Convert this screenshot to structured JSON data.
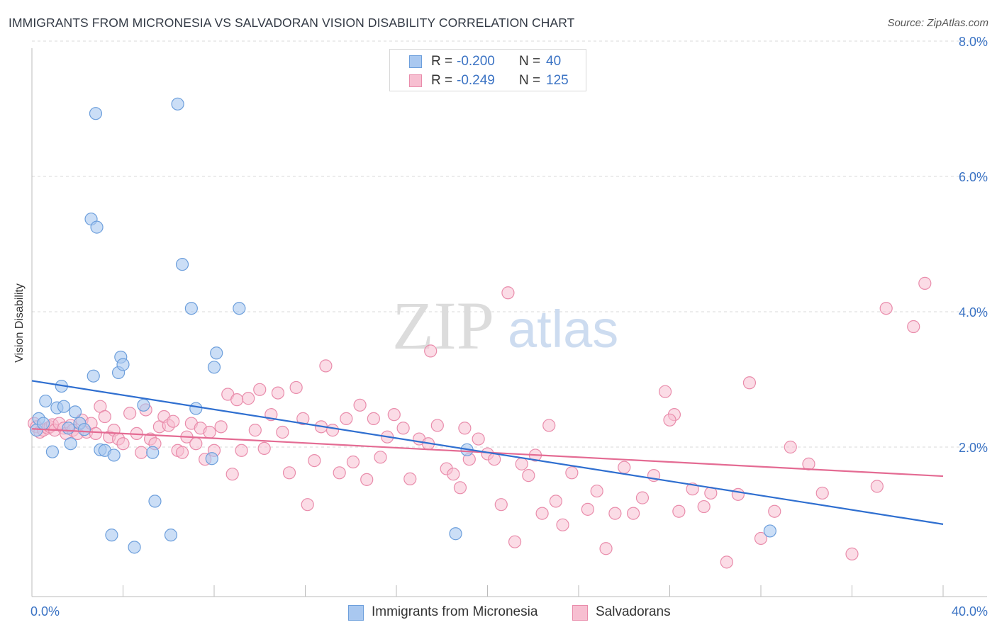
{
  "title": "IMMIGRANTS FROM MICRONESIA VS SALVADORAN VISION DISABILITY CORRELATION CHART",
  "source": "Source: ZipAtlas.com",
  "watermark": {
    "zip": "ZIP",
    "atlas": "atlas"
  },
  "legend_top": {
    "rows": [
      {
        "r_label": "R =",
        "r_value": "-0.200",
        "n_label": "N =",
        "n_value": "40"
      },
      {
        "r_label": "R =",
        "r_value": "-0.249",
        "n_label": "N =",
        "n_value": "125"
      }
    ]
  },
  "legend_bottom": [
    "Immigrants from Micronesia",
    "Salvadorans"
  ],
  "colors": {
    "blue_fill": "#a9c8f0",
    "blue_stroke": "#6d9fdc",
    "blue_line": "#2f6fd0",
    "pink_fill": "#f7bfd1",
    "pink_stroke": "#e98cab",
    "pink_line": "#e46b93",
    "tick_text": "#3b73c4",
    "grid": "#d8d8d8"
  },
  "chart_data": {
    "type": "scatter",
    "title": "IMMIGRANTS FROM MICRONESIA VS SALVADORAN VISION DISABILITY CORRELATION CHART",
    "xlabel": "",
    "ylabel": "Vision Disability",
    "xlim": [
      0,
      40
    ],
    "ylim": [
      0,
      8.4
    ],
    "x_tick_labels": [
      "0.0%",
      "40.0%"
    ],
    "y_ticks": [
      2,
      4,
      6,
      8
    ],
    "y_tick_labels": [
      "2.0%",
      "4.0%",
      "6.0%",
      "8.0%"
    ],
    "grid": "horizontal dashed",
    "legend_position": "top-center",
    "series": [
      {
        "name": "Immigrants from Micronesia",
        "color": "#a9c8f0",
        "trend": {
          "x": [
            0,
            40
          ],
          "y": [
            2.98,
            0.86
          ]
        },
        "points": [
          [
            0.2,
            2.25
          ],
          [
            0.3,
            2.42
          ],
          [
            0.5,
            2.35
          ],
          [
            0.6,
            2.68
          ],
          [
            0.9,
            1.93
          ],
          [
            1.1,
            2.58
          ],
          [
            1.3,
            2.9
          ],
          [
            1.4,
            2.6
          ],
          [
            1.6,
            2.28
          ],
          [
            1.7,
            2.05
          ],
          [
            1.9,
            2.52
          ],
          [
            2.1,
            2.35
          ],
          [
            2.3,
            2.26
          ],
          [
            2.6,
            5.37
          ],
          [
            2.7,
            3.05
          ],
          [
            2.8,
            6.93
          ],
          [
            2.85,
            5.25
          ],
          [
            3.0,
            1.96
          ],
          [
            3.2,
            1.95
          ],
          [
            3.5,
            0.7
          ],
          [
            3.6,
            1.88
          ],
          [
            3.8,
            3.1
          ],
          [
            3.9,
            3.33
          ],
          [
            4.0,
            3.22
          ],
          [
            4.5,
            0.52
          ],
          [
            4.9,
            2.62
          ],
          [
            5.3,
            1.92
          ],
          [
            5.4,
            1.2
          ],
          [
            6.1,
            0.7
          ],
          [
            6.4,
            7.07
          ],
          [
            6.6,
            4.7
          ],
          [
            7.0,
            4.05
          ],
          [
            7.2,
            2.57
          ],
          [
            7.9,
            1.83
          ],
          [
            8.0,
            3.18
          ],
          [
            8.1,
            3.39
          ],
          [
            9.1,
            4.05
          ],
          [
            18.6,
            0.72
          ],
          [
            19.1,
            1.96
          ],
          [
            32.4,
            0.76
          ]
        ]
      },
      {
        "name": "Salvadorans",
        "color": "#f7bfd1",
        "trend": {
          "x": [
            0,
            40
          ],
          "y": [
            2.27,
            1.57
          ]
        },
        "points": [
          [
            0.1,
            2.35
          ],
          [
            0.2,
            2.3
          ],
          [
            0.35,
            2.22
          ],
          [
            0.5,
            2.25
          ],
          [
            0.7,
            2.28
          ],
          [
            0.8,
            2.3
          ],
          [
            0.9,
            2.33
          ],
          [
            1.0,
            2.25
          ],
          [
            1.2,
            2.35
          ],
          [
            1.4,
            2.28
          ],
          [
            1.5,
            2.2
          ],
          [
            1.7,
            2.32
          ],
          [
            1.8,
            2.25
          ],
          [
            2.0,
            2.2
          ],
          [
            2.2,
            2.4
          ],
          [
            2.4,
            2.22
          ],
          [
            2.6,
            2.35
          ],
          [
            2.8,
            2.2
          ],
          [
            3.0,
            2.6
          ],
          [
            3.2,
            2.45
          ],
          [
            3.4,
            2.15
          ],
          [
            3.6,
            2.25
          ],
          [
            3.8,
            2.12
          ],
          [
            4.0,
            2.05
          ],
          [
            4.3,
            2.5
          ],
          [
            4.6,
            2.2
          ],
          [
            4.8,
            1.92
          ],
          [
            5.0,
            2.55
          ],
          [
            5.2,
            2.12
          ],
          [
            5.4,
            2.05
          ],
          [
            5.6,
            2.3
          ],
          [
            5.8,
            2.45
          ],
          [
            6.0,
            2.32
          ],
          [
            6.2,
            2.38
          ],
          [
            6.4,
            1.95
          ],
          [
            6.6,
            1.92
          ],
          [
            6.8,
            2.15
          ],
          [
            7.0,
            2.35
          ],
          [
            7.2,
            2.05
          ],
          [
            7.4,
            2.28
          ],
          [
            7.6,
            1.82
          ],
          [
            7.8,
            2.22
          ],
          [
            8.0,
            1.95
          ],
          [
            8.3,
            2.3
          ],
          [
            8.6,
            2.78
          ],
          [
            8.8,
            1.6
          ],
          [
            9.0,
            2.7
          ],
          [
            9.2,
            1.95
          ],
          [
            9.5,
            2.72
          ],
          [
            9.8,
            2.25
          ],
          [
            10.0,
            2.85
          ],
          [
            10.2,
            1.98
          ],
          [
            10.5,
            2.48
          ],
          [
            10.8,
            2.8
          ],
          [
            11.0,
            2.22
          ],
          [
            11.3,
            1.62
          ],
          [
            11.6,
            2.88
          ],
          [
            11.9,
            2.42
          ],
          [
            12.1,
            1.15
          ],
          [
            12.4,
            1.8
          ],
          [
            12.7,
            2.3
          ],
          [
            12.9,
            3.2
          ],
          [
            13.2,
            2.25
          ],
          [
            13.5,
            1.62
          ],
          [
            13.8,
            2.42
          ],
          [
            14.1,
            1.78
          ],
          [
            14.4,
            2.62
          ],
          [
            14.7,
            1.52
          ],
          [
            15.0,
            2.42
          ],
          [
            15.3,
            1.85
          ],
          [
            15.6,
            2.15
          ],
          [
            15.9,
            2.48
          ],
          [
            16.3,
            2.28
          ],
          [
            16.6,
            1.53
          ],
          [
            17.0,
            2.12
          ],
          [
            17.4,
            2.05
          ],
          [
            17.8,
            2.32
          ],
          [
            17.5,
            3.42
          ],
          [
            18.2,
            1.68
          ],
          [
            18.5,
            1.6
          ],
          [
            18.8,
            1.4
          ],
          [
            19.2,
            1.82
          ],
          [
            19.6,
            2.12
          ],
          [
            19.0,
            2.28
          ],
          [
            20.0,
            1.9
          ],
          [
            20.3,
            1.82
          ],
          [
            20.6,
            1.15
          ],
          [
            20.9,
            4.28
          ],
          [
            21.2,
            0.6
          ],
          [
            21.5,
            1.75
          ],
          [
            21.8,
            1.58
          ],
          [
            22.1,
            1.88
          ],
          [
            22.4,
            1.02
          ],
          [
            22.7,
            2.32
          ],
          [
            23.0,
            1.2
          ],
          [
            23.3,
            0.85
          ],
          [
            23.7,
            1.62
          ],
          [
            24.4,
            1.08
          ],
          [
            24.8,
            1.35
          ],
          [
            25.2,
            0.5
          ],
          [
            25.6,
            1.02
          ],
          [
            26.0,
            1.7
          ],
          [
            26.4,
            1.02
          ],
          [
            26.8,
            1.25
          ],
          [
            27.3,
            1.58
          ],
          [
            27.8,
            2.82
          ],
          [
            28.2,
            2.48
          ],
          [
            28.0,
            2.4
          ],
          [
            29.0,
            1.38
          ],
          [
            29.8,
            1.32
          ],
          [
            30.5,
            0.3
          ],
          [
            31.0,
            1.3
          ],
          [
            31.5,
            2.95
          ],
          [
            32.0,
            0.65
          ],
          [
            32.6,
            1.05
          ],
          [
            33.3,
            2.0
          ],
          [
            34.1,
            1.75
          ],
          [
            34.7,
            1.32
          ],
          [
            36.0,
            0.42
          ],
          [
            37.1,
            1.42
          ],
          [
            37.5,
            4.05
          ],
          [
            38.7,
            3.78
          ],
          [
            39.2,
            4.42
          ],
          [
            28.4,
            1.05
          ],
          [
            29.5,
            1.12
          ]
        ]
      }
    ]
  }
}
